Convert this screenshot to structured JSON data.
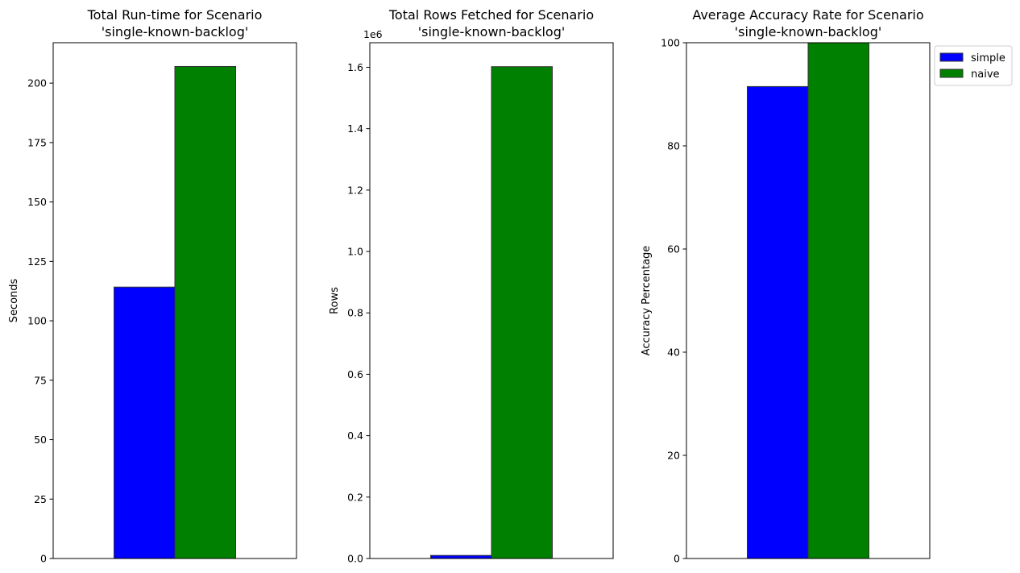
{
  "chart_data": [
    {
      "type": "bar",
      "title_lines": [
        "Total Run-time for Scenario",
        "'single-known-backlog'"
      ],
      "xlabel": "",
      "ylabel": "Seconds",
      "ylim": [
        0,
        217
      ],
      "yticks": [
        0,
        25,
        50,
        75,
        100,
        125,
        150,
        175,
        200
      ],
      "ytick_labels": [
        "0",
        "25",
        "50",
        "75",
        "100",
        "125",
        "150",
        "175",
        "200"
      ],
      "offset_label": "",
      "series": [
        {
          "name": "simple",
          "values": [
            114.2
          ]
        },
        {
          "name": "naive",
          "values": [
            207.0
          ]
        }
      ]
    },
    {
      "type": "bar",
      "title_lines": [
        "Total Rows Fetched for Scenario",
        "'single-known-backlog'"
      ],
      "xlabel": "",
      "ylabel": "Rows",
      "ylim": [
        0,
        1.68
      ],
      "yticks": [
        0,
        0.2,
        0.4,
        0.6,
        0.8,
        1.0,
        1.2,
        1.4,
        1.6
      ],
      "ytick_labels": [
        "0.0",
        "0.2",
        "0.4",
        "0.6",
        "0.8",
        "1.0",
        "1.2",
        "1.4",
        "1.6"
      ],
      "offset_label": "1e6",
      "series": [
        {
          "name": "simple",
          "values": [
            0.01
          ]
        },
        {
          "name": "naive",
          "values": [
            1.602
          ]
        }
      ]
    },
    {
      "type": "bar",
      "title_lines": [
        "Average Accuracy Rate for Scenario",
        "'single-known-backlog'"
      ],
      "xlabel": "",
      "ylabel": "Accuracy Percentage",
      "ylim": [
        0,
        100
      ],
      "yticks": [
        0,
        20,
        40,
        60,
        80,
        100
      ],
      "ytick_labels": [
        "0",
        "20",
        "40",
        "60",
        "80",
        "100"
      ],
      "offset_label": "",
      "series": [
        {
          "name": "simple",
          "values": [
            91.5
          ]
        },
        {
          "name": "naive",
          "values": [
            100
          ]
        }
      ]
    }
  ],
  "legend": {
    "placement": "outside-top-right",
    "entries": [
      {
        "name": "simple",
        "color": "#0000ff"
      },
      {
        "name": "naive",
        "color": "#008000"
      }
    ]
  },
  "colors": {
    "simple": "#0000ff",
    "naive": "#008000",
    "bar_edge": "#333333"
  }
}
